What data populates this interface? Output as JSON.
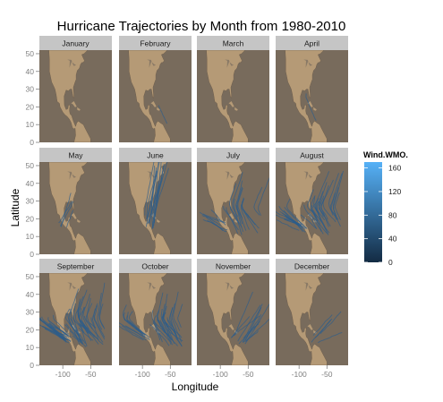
{
  "chart_data": {
    "type": "line",
    "title": "Hurricane Trajectories by Month from 1980-2010",
    "xlabel": "Longitude",
    "ylabel": "Latitude",
    "xlim": [
      -142,
      -12
    ],
    "ylim": [
      0,
      52
    ],
    "x_ticks": [
      -100,
      -50
    ],
    "x_tick_labels": [
      "-100",
      "-50"
    ],
    "y_ticks": [
      0,
      10,
      20,
      30,
      40,
      50
    ],
    "y_tick_labels": [
      "0",
      "10",
      "20",
      "30",
      "40",
      "50"
    ],
    "facet_layout": [
      3,
      4
    ],
    "panels": [
      {
        "month": "January",
        "track_count": 0
      },
      {
        "month": "February",
        "track_count": 1
      },
      {
        "month": "March",
        "track_count": 0
      },
      {
        "month": "April",
        "track_count": 1
      },
      {
        "month": "May",
        "track_count": 4
      },
      {
        "month": "June",
        "track_count": 14
      },
      {
        "month": "July",
        "track_count": 24
      },
      {
        "month": "August",
        "track_count": 40
      },
      {
        "month": "September",
        "track_count": 52
      },
      {
        "month": "October",
        "track_count": 36
      },
      {
        "month": "November",
        "track_count": 12
      },
      {
        "month": "December",
        "track_count": 5
      }
    ],
    "legend": {
      "title": "Wind.WMO.",
      "position": "right",
      "range": [
        0,
        170
      ],
      "ticks": [
        0,
        40,
        80,
        120,
        160
      ],
      "tick_labels": [
        "0",
        "40",
        "80",
        "120",
        "160"
      ],
      "color_low": "#132b43",
      "color_high": "#56b1f7"
    },
    "colors": {
      "ocean": "#786b5c",
      "land": "#b59a76",
      "strip": "#c5c5c5",
      "track": "#2b5c8c"
    },
    "grid": false
  }
}
